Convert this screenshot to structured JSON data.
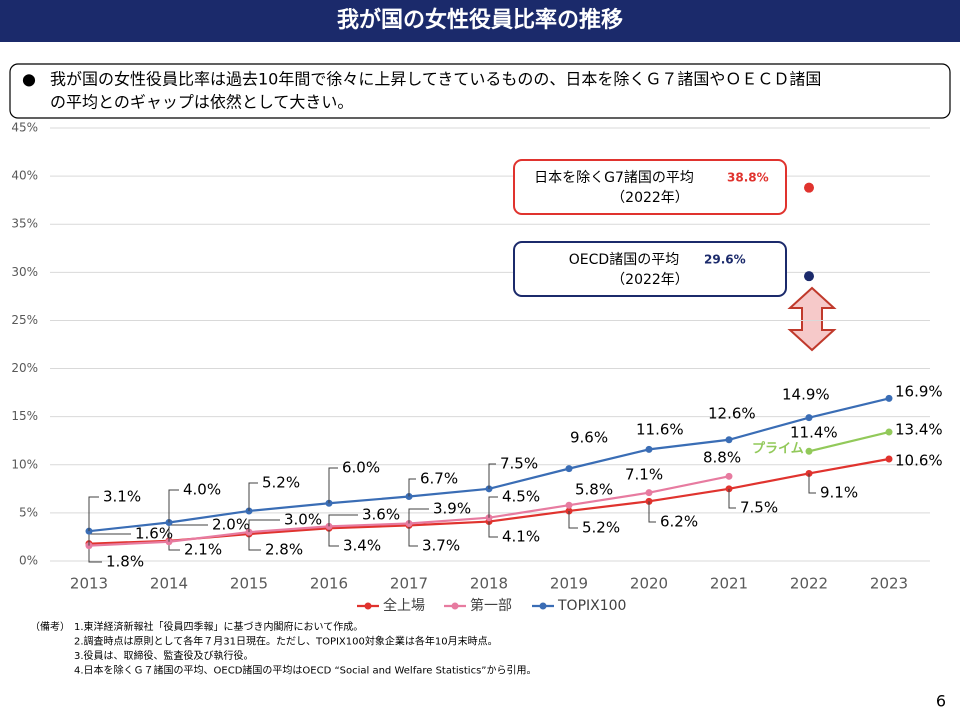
{
  "header": {
    "title": "我が国の女性役員比率の推移"
  },
  "lead": {
    "bullet": "●",
    "lines": [
      "我が国の女性役員比率は過去10年間で徐々に上昇してきているものの、日本を除くＧ７諸国やＯＥＣＤ諸国",
      "の平均とのギャップは依然として大きい。"
    ]
  },
  "chart_data": {
    "type": "line",
    "categories": [
      "2013",
      "2014",
      "2015",
      "2016",
      "2017",
      "2018",
      "2019",
      "2020",
      "2021",
      "2022",
      "2023"
    ],
    "ylim": [
      0,
      45
    ],
    "yticks": [
      {
        "value": 0,
        "label": "0%"
      },
      {
        "value": 5,
        "label": "5%"
      },
      {
        "value": 10,
        "label": "10%"
      },
      {
        "value": 15,
        "label": "15%"
      },
      {
        "value": 20,
        "label": "20%"
      },
      {
        "value": 25,
        "label": "25%"
      },
      {
        "value": 30,
        "label": "30%"
      },
      {
        "value": 35,
        "label": "35%"
      },
      {
        "value": 40,
        "label": "40%"
      },
      {
        "value": 45,
        "label": "45%"
      }
    ],
    "grid": true,
    "legend": "bottom",
    "series": [
      {
        "name": "全上場",
        "color": "#e0332e",
        "values": [
          1.8,
          2.1,
          2.8,
          3.4,
          3.7,
          4.1,
          5.2,
          6.2,
          7.5,
          9.1,
          10.6
        ],
        "value_labels": [
          "1.8%",
          "2.1%",
          "2.8%",
          "3.4%",
          "3.7%",
          "4.1%",
          "5.2%",
          "6.2%",
          "7.5%",
          "9.1%",
          "10.6%"
        ]
      },
      {
        "name": "第一部",
        "color": "#e77ba0",
        "values": [
          1.6,
          2.0,
          3.0,
          3.6,
          3.9,
          4.5,
          5.8,
          7.1,
          8.8,
          null,
          null
        ],
        "value_labels": [
          "1.6%",
          "2.0%",
          "3.0%",
          "3.6%",
          "3.9%",
          "4.5%",
          "5.8%",
          "7.1%",
          "8.8%",
          null,
          null
        ]
      },
      {
        "name": "TOPIX100",
        "color": "#3a6db5",
        "values": [
          3.1,
          4.0,
          5.2,
          6.0,
          6.7,
          7.5,
          9.6,
          11.6,
          12.6,
          14.9,
          16.9
        ],
        "value_labels": [
          "3.1%",
          "4.0%",
          "5.2%",
          "6.0%",
          "6.7%",
          "7.5%",
          "9.6%",
          "11.6%",
          "12.6%",
          "14.9%",
          "16.9%"
        ]
      }
    ],
    "inline_series": {
      "name": "プライム",
      "color": "#92c95a",
      "values": [
        null,
        null,
        null,
        null,
        null,
        null,
        null,
        null,
        null,
        11.4,
        13.4
      ],
      "value_labels": [
        null,
        null,
        null,
        null,
        null,
        null,
        null,
        null,
        null,
        "11.4%",
        "13.4%"
      ]
    },
    "annotations": [
      {
        "text": "日本を除くG7諸国の平均",
        "value": 38.8,
        "value_label": "38.8%",
        "note": "（2022年）",
        "color": "#e0332e",
        "category": "2022"
      },
      {
        "text": "OECD諸国の平均",
        "value": 29.6,
        "value_label": "29.6%",
        "note": "（2022年）",
        "color": "#1b2a6b",
        "category": "2022"
      }
    ]
  },
  "notes": {
    "label": "（備考）",
    "items": [
      "1.東洋経済新報社「役員四季報」に基づき内閣府において作成。",
      "2.調査時点は原則として各年７月31日現在。ただし、TOPIX100対象企業は各年10月末時点。",
      "3.役員は、取締役、監査役及び執行役。",
      "4.日本を除くＧ７諸国の平均、OECD諸国の平均はOECD “Social and Welfare Statistics”から引用。"
    ]
  },
  "page_number": "6"
}
